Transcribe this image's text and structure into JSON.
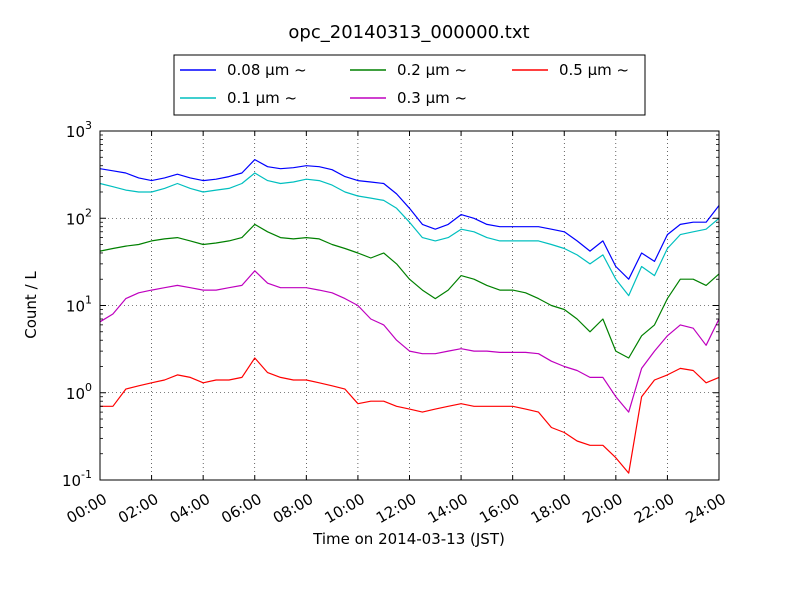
{
  "chart_data": {
    "type": "line",
    "title": "opc_20140313_000000.txt",
    "xlabel": "Time on 2014-03-13 (JST)",
    "ylabel": "Count / L",
    "yscale": "log",
    "xlim": [
      "00:00",
      "24:00"
    ],
    "ylim": [
      0.1,
      1000
    ],
    "grid": true,
    "legend_position": "top",
    "x_ticks": [
      "00:00",
      "02:00",
      "04:00",
      "06:00",
      "08:00",
      "10:00",
      "12:00",
      "14:00",
      "16:00",
      "18:00",
      "20:00",
      "22:00",
      "24:00"
    ],
    "y_ticks": [
      {
        "base": "10",
        "exp": "-1",
        "value": 0.1
      },
      {
        "base": "10",
        "exp": "0",
        "value": 1
      },
      {
        "base": "10",
        "exp": "1",
        "value": 10
      },
      {
        "base": "10",
        "exp": "2",
        "value": 100
      },
      {
        "base": "10",
        "exp": "3",
        "value": 1000
      }
    ],
    "x_hours": [
      0,
      0.5,
      1,
      1.5,
      2,
      2.5,
      3,
      3.5,
      4,
      4.5,
      5,
      5.5,
      6,
      6.5,
      7,
      7.5,
      8,
      8.5,
      9,
      9.5,
      10,
      10.5,
      11,
      11.5,
      12,
      12.5,
      13,
      13.5,
      14,
      14.5,
      15,
      15.5,
      16,
      16.5,
      17,
      17.5,
      18,
      18.5,
      19,
      19.5,
      20,
      20.5,
      21,
      21.5,
      22,
      22.5,
      23,
      23.5,
      24
    ],
    "series": [
      {
        "name": "0.08 μm ~",
        "color": "#0000ff",
        "values": [
          370,
          350,
          330,
          290,
          270,
          290,
          320,
          290,
          270,
          280,
          300,
          330,
          470,
          390,
          370,
          380,
          400,
          390,
          360,
          300,
          270,
          260,
          250,
          190,
          130,
          85,
          75,
          85,
          110,
          100,
          85,
          80,
          80,
          80,
          80,
          75,
          70,
          55,
          42,
          55,
          28,
          20,
          40,
          32,
          65,
          85,
          90,
          90,
          140
        ]
      },
      {
        "name": "0.1 μm ~",
        "color": "#00bfbf",
        "values": [
          250,
          230,
          210,
          200,
          200,
          220,
          250,
          220,
          200,
          210,
          220,
          250,
          330,
          270,
          250,
          260,
          280,
          270,
          240,
          200,
          180,
          170,
          160,
          130,
          90,
          60,
          55,
          60,
          75,
          70,
          60,
          55,
          55,
          55,
          55,
          50,
          45,
          38,
          30,
          38,
          20,
          13,
          28,
          22,
          45,
          65,
          70,
          75,
          100
        ]
      },
      {
        "name": "0.2 μm ~",
        "color": "#008000",
        "values": [
          42,
          45,
          48,
          50,
          55,
          58,
          60,
          55,
          50,
          52,
          55,
          60,
          85,
          70,
          60,
          58,
          60,
          58,
          50,
          45,
          40,
          35,
          40,
          30,
          20,
          15,
          12,
          15,
          22,
          20,
          17,
          15,
          15,
          14,
          12,
          10,
          9,
          7,
          5,
          7,
          3,
          2.5,
          4.5,
          6,
          12,
          20,
          20,
          17,
          23
        ]
      },
      {
        "name": "0.3 μm ~",
        "color": "#bf00bf",
        "values": [
          6.5,
          8,
          12,
          14,
          15,
          16,
          17,
          16,
          15,
          15,
          16,
          17,
          25,
          18,
          16,
          16,
          16,
          15,
          14,
          12,
          10,
          7,
          6,
          4,
          3,
          2.8,
          2.8,
          3,
          3.2,
          3,
          3,
          2.9,
          2.9,
          2.9,
          2.8,
          2.3,
          2,
          1.8,
          1.5,
          1.5,
          0.9,
          0.6,
          1.9,
          3,
          4.5,
          6,
          5.5,
          3.5,
          7
        ]
      },
      {
        "name": "0.5 μm ~",
        "color": "#ff0000",
        "values": [
          0.7,
          0.7,
          1.1,
          1.2,
          1.3,
          1.4,
          1.6,
          1.5,
          1.3,
          1.4,
          1.4,
          1.5,
          2.5,
          1.7,
          1.5,
          1.4,
          1.4,
          1.3,
          1.2,
          1.1,
          0.75,
          0.8,
          0.8,
          0.7,
          0.65,
          0.6,
          0.65,
          0.7,
          0.75,
          0.7,
          0.7,
          0.7,
          0.7,
          0.65,
          0.6,
          0.4,
          0.35,
          0.28,
          0.25,
          0.25,
          0.18,
          0.12,
          0.9,
          1.4,
          1.6,
          1.9,
          1.8,
          1.3,
          1.5
        ]
      }
    ]
  }
}
